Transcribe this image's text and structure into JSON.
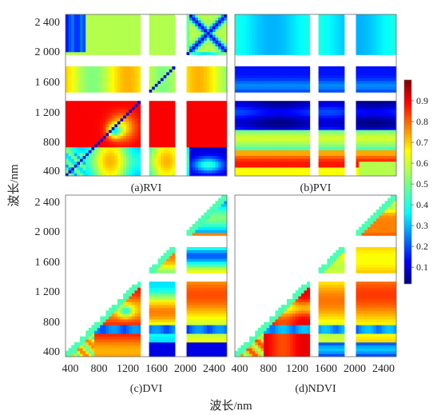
{
  "chart_data": {
    "type": "heatmap",
    "panels": [
      {
        "id": "rvi",
        "label": "(a)RVI",
        "triangular": false,
        "pattern": "rvi"
      },
      {
        "id": "pvi",
        "label": "(b)PVI",
        "triangular": false,
        "pattern": "pvi"
      },
      {
        "id": "dvi",
        "label": "(c)DVI",
        "triangular": true,
        "pattern": "dvi"
      },
      {
        "id": "ndvi",
        "label": "(d)NDVI",
        "triangular": true,
        "pattern": "ndvi"
      }
    ],
    "x_range_nm": [
      350,
      2500
    ],
    "y_range_nm": [
      350,
      2500
    ],
    "x_ticks": [
      "400",
      "800",
      "1200",
      "1600",
      "2000",
      "2400"
    ],
    "x_tick_values": [
      400,
      800,
      1200,
      1600,
      2000,
      2400
    ],
    "y_ticks": [
      "400",
      "800",
      "1 200",
      "1 600",
      "2 000",
      "2 400"
    ],
    "y_tick_values": [
      400,
      800,
      1200,
      1600,
      2000,
      2400
    ],
    "water_absorption_gaps_nm": [
      [
        1350,
        1450
      ],
      [
        1800,
        1950
      ]
    ],
    "xlabel": "波长/nm",
    "ylabel": "波长/nm",
    "colorbar": {
      "range": [
        0.02,
        1.0
      ],
      "ticks": [
        "0.1",
        "0.2",
        "0.3",
        "0.4",
        "0.5",
        "0.6",
        "0.7",
        "0.8",
        "0.9"
      ],
      "tick_values": [
        0.1,
        0.2,
        0.3,
        0.4,
        0.5,
        0.6,
        0.7,
        0.8,
        0.9
      ],
      "colormap": "jet"
    }
  }
}
